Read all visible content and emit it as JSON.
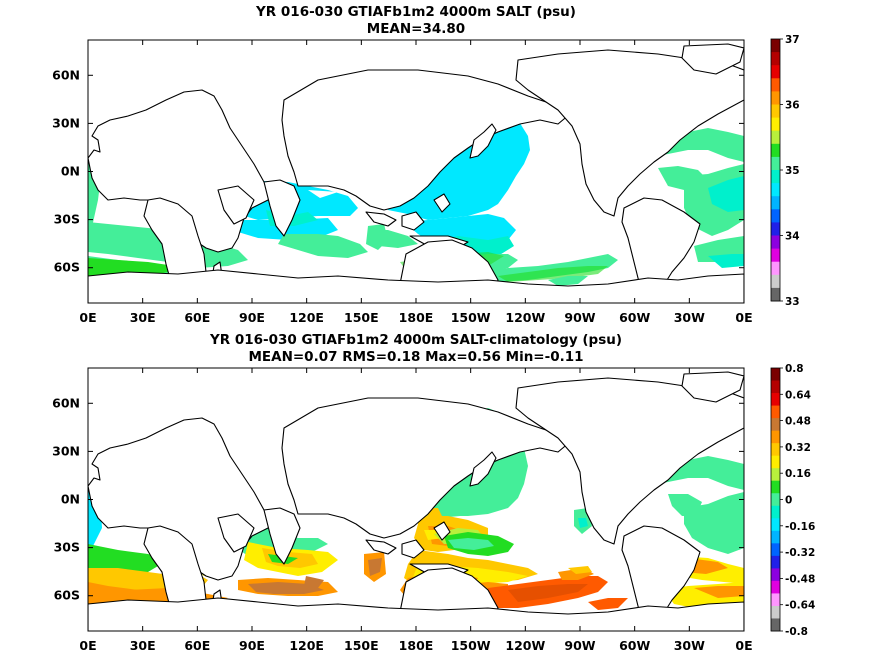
{
  "panels": [
    {
      "title": "YR 016-030 GTIAFb1m2 4000m SALT (psu)",
      "subtitle": "MEAN=34.80",
      "colorbar": {
        "labels": [
          "37",
          "36",
          "35",
          "34",
          "33"
        ],
        "colors": [
          "#7a0000",
          "#b40000",
          "#e60000",
          "#ff5a00",
          "#ff9600",
          "#ffc800",
          "#ffee00",
          "#b8f03c",
          "#22dd22",
          "#44ee99",
          "#00f0cc",
          "#00e8ff",
          "#00b4ff",
          "#0064ff",
          "#2020e8",
          "#8c00e0",
          "#e000e0",
          "#ff96ff",
          "#cccccc",
          "#666666"
        ]
      }
    },
    {
      "title": "YR 016-030 GTIAFb1m2 4000m SALT-climatology (psu)",
      "subtitle": "MEAN=0.07   RMS=0.18   Max=0.56   Min=-0.11",
      "colorbar": {
        "labels": [
          "0.8",
          "0.64",
          "0.48",
          "0.32",
          "0.16",
          "0",
          "-0.16",
          "-0.32",
          "-0.48",
          "-0.64",
          "-0.8"
        ],
        "colors": [
          "#7a0000",
          "#b40000",
          "#e60000",
          "#ff5a00",
          "#c87832",
          "#ff9600",
          "#ffc800",
          "#ffee00",
          "#b8f03c",
          "#22dd22",
          "#44ee99",
          "#00f0cc",
          "#00e8ff",
          "#00b4ff",
          "#0064ff",
          "#2020e8",
          "#8c00e0",
          "#e000e0",
          "#ff96ff",
          "#cccccc",
          "#666666"
        ]
      }
    }
  ],
  "axes": {
    "lon_labels": [
      "0E",
      "30E",
      "60E",
      "90E",
      "120E",
      "150E",
      "180E",
      "150W",
      "120W",
      "90W",
      "60W",
      "30W",
      "0E"
    ],
    "lat_labels": [
      "60N",
      "30N",
      "0N",
      "30S",
      "60S"
    ]
  }
}
